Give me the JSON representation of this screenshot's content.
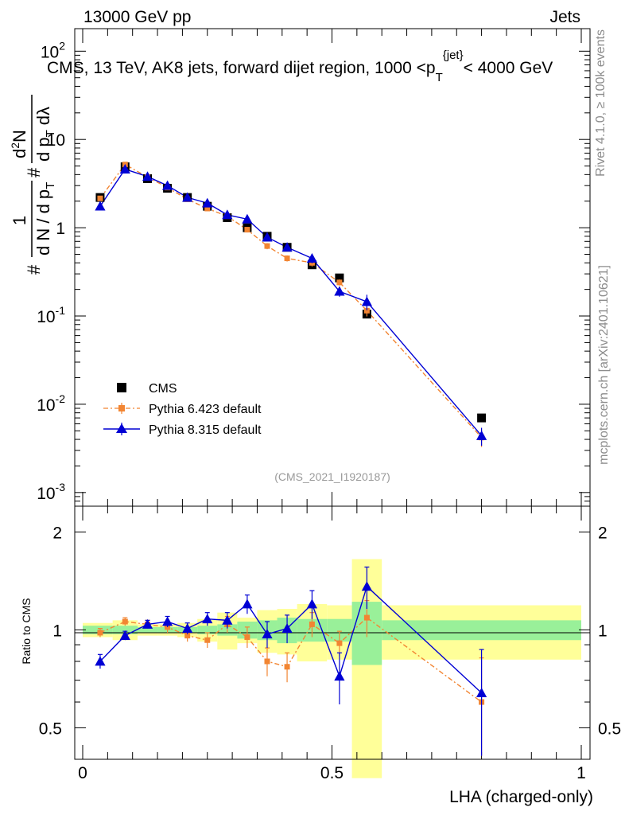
{
  "header": {
    "energy_label": "13000 GeV pp",
    "category_label": "Jets",
    "side_rivet": "Rivet 4.1.0, ≥ 100k events",
    "side_mcplots": "mcplots.cern.ch [arXiv:2401.10621]"
  },
  "main_plot": {
    "title": "CMS, 13 TeV, AK8 jets, forward dijet region, 1000 <p",
    "title_sub": "T",
    "title_sup": "{jet}",
    "title_end": "< 4000 GeV",
    "ylabel_prefix": "#",
    "ylabel_frac_num": "1",
    "ylabel_frac_den": "d N / d p",
    "ylabel_den_sub": "T",
    "ylabel_mid": "#",
    "ylabel_d2": "d",
    "ylabel_sup2": "2",
    "ylabel_N": "N",
    "ylabel_dpT": "d p",
    "ylabel_dpT_sub": "T",
    "ylabel_dlambda": "dλ",
    "watermark": "(CMS_2021_I1920187)",
    "yticks": [
      {
        "value": 0.001,
        "base": "10",
        "exp": "-3"
      },
      {
        "value": 0.01,
        "base": "10",
        "exp": "-2"
      },
      {
        "value": 0.1,
        "base": "10",
        "exp": "-1"
      },
      {
        "value": 1,
        "base": "1",
        "exp": ""
      },
      {
        "value": 10,
        "base": "10",
        "exp": ""
      },
      {
        "value": 100,
        "base": "10",
        "exp": "2"
      }
    ]
  },
  "ratio_plot": {
    "ylabel": "Ratio to CMS",
    "yticks": [
      "0.5",
      "1",
      "2"
    ],
    "ytick_values": [
      0.5,
      1,
      2
    ]
  },
  "xaxis": {
    "label": "LHA (charged-only)",
    "ticks": [
      "0",
      "0.5",
      "1"
    ],
    "tick_values": [
      0,
      0.5,
      1
    ]
  },
  "legend": [
    {
      "label": "CMS",
      "color": "#000000",
      "marker": "square"
    },
    {
      "label": "Pythia 6.423 default",
      "color": "#f28532",
      "marker": "square-small"
    },
    {
      "label": "Pythia 8.315 default",
      "color": "#0000d4",
      "marker": "triangle"
    }
  ],
  "chart_data": {
    "type": "scatter",
    "x_range": [
      0,
      1
    ],
    "y_range_main": [
      0.0007,
      180
    ],
    "y_range_ratio": [
      0.4,
      2.4
    ],
    "log_y": true,
    "x": [
      0.035,
      0.085,
      0.13,
      0.17,
      0.21,
      0.25,
      0.29,
      0.33,
      0.37,
      0.41,
      0.46,
      0.515,
      0.57,
      0.8
    ],
    "x_bin_edges": [
      0,
      0.06,
      0.11,
      0.15,
      0.19,
      0.23,
      0.27,
      0.31,
      0.35,
      0.39,
      0.43,
      0.49,
      0.54,
      0.6,
      1.0
    ],
    "series": [
      {
        "name": "CMS",
        "values": [
          2.2,
          4.9,
          3.6,
          2.8,
          2.2,
          1.75,
          1.3,
          1.0,
          0.8,
          0.6,
          0.38,
          0.27,
          0.105,
          0.007
        ],
        "ratio": [
          1,
          1,
          1,
          1,
          1,
          1,
          1,
          1,
          1,
          1,
          1,
          1,
          1,
          1
        ],
        "band_green": [
          0.03,
          0.03,
          0.02,
          0.02,
          0.02,
          0.03,
          0.04,
          0.06,
          0.07,
          0.09,
          0.08,
          0.08,
          0.22,
          0.07
        ],
        "band_yellow": [
          0.05,
          0.07,
          0.04,
          0.04,
          0.05,
          0.08,
          0.13,
          0.09,
          0.15,
          0.16,
          0.2,
          0.19,
          0.65,
          0.19
        ]
      },
      {
        "name": "Pythia 6.423 default",
        "values": [
          2.15,
          5.2,
          3.75,
          2.85,
          2.1,
          1.65,
          1.35,
          0.95,
          0.62,
          0.45,
          0.4,
          0.24,
          0.115,
          0.0042
        ],
        "ratio": [
          0.98,
          1.06,
          1.04,
          1.02,
          0.96,
          0.93,
          1.04,
          0.95,
          0.8,
          0.77,
          1.04,
          0.91,
          1.09,
          0.6
        ],
        "ratio_err": [
          0.03,
          0.03,
          0.03,
          0.04,
          0.04,
          0.05,
          0.06,
          0.07,
          0.08,
          0.08,
          0.09,
          0.08,
          0.14,
          0.22
        ]
      },
      {
        "name": "Pythia 8.315 default",
        "values": [
          1.75,
          4.6,
          3.8,
          3.0,
          2.2,
          1.9,
          1.4,
          1.25,
          0.78,
          0.6,
          0.45,
          0.19,
          0.145,
          0.0044
        ],
        "ratio": [
          0.8,
          0.96,
          1.04,
          1.06,
          1.01,
          1.08,
          1.07,
          1.2,
          0.97,
          1.01,
          1.2,
          0.72,
          1.36,
          0.64
        ],
        "ratio_err": [
          0.04,
          0.03,
          0.03,
          0.04,
          0.04,
          0.05,
          0.06,
          0.08,
          0.09,
          0.1,
          0.12,
          0.13,
          0.2,
          0.23
        ]
      }
    ]
  }
}
